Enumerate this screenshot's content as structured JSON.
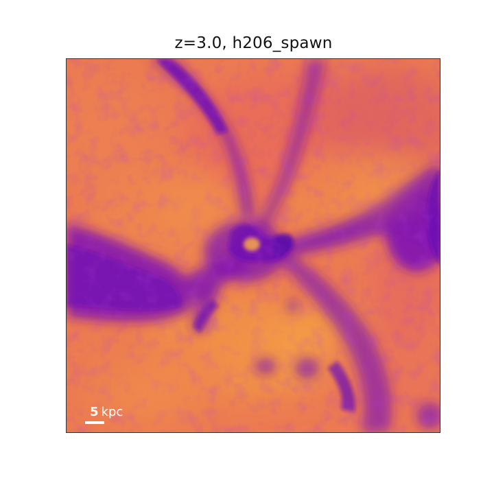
{
  "title": "z=3.0, h206_spawn",
  "scalebar": {
    "value": "5",
    "unit": "kpc"
  },
  "colors": {
    "background": "#ee7f50",
    "warm": "#f2924a",
    "pink": "#e0645e",
    "purple": "#7a10b4",
    "violet": "#9a28a8"
  },
  "image_subject": "gas density projection of a simulated galaxy halo with purple filaments over an orange field"
}
